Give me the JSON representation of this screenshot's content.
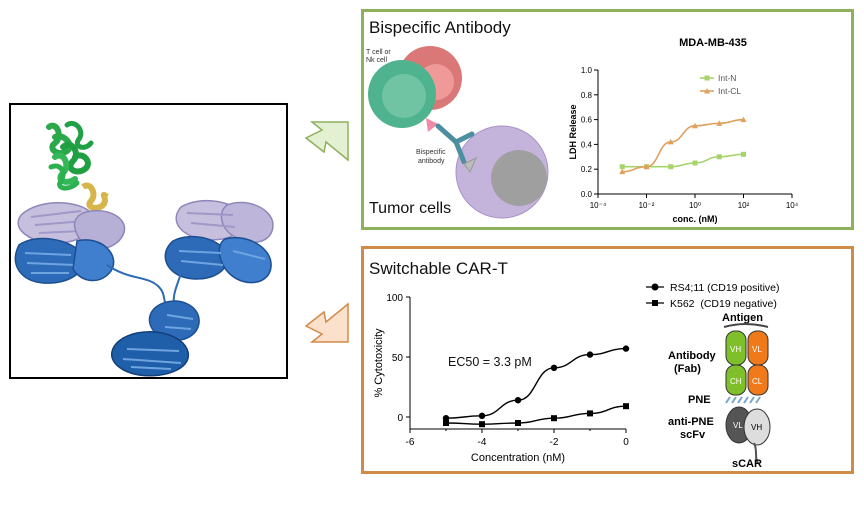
{
  "bispecific": {
    "title": "Bispecific Antibody",
    "cell_label": "T cell or Nk cell",
    "cell_label_line1": "T cell or",
    "cell_label_line2": "Nk cell",
    "antibody_label": "Bispecific antibody",
    "antibody_label_line1": "Bispecific",
    "antibody_label_line2": "antibody",
    "tumor_label": "Tumor cells"
  },
  "car_t": {
    "title": "Switchable CAR-T",
    "ec50": "EC50 = 3.3 pM",
    "legend": [
      "RS4;11 (CD19 positive)",
      "K562  (CD19 negative)"
    ],
    "schematic": {
      "antigen": "Antigen",
      "antibody_line1": "Antibody",
      "antibody_line2": "(Fab)",
      "pne": "PNE",
      "scfv_line1": "anti-PNE",
      "scfv_line2": "scFv",
      "scar": "sCAR",
      "domain_vh": "VH",
      "domain_vl": "VL",
      "domain_ch": "CH",
      "domain_cl": "CL"
    }
  },
  "colors": {
    "green_border": "#8db15c",
    "orange_border": "#d28a4a",
    "int_n": "#a6d46a",
    "int_cl": "#e0a05e"
  },
  "chart_data": [
    {
      "type": "line",
      "title": "MDA-MB-435",
      "xlabel": "conc. (nM)",
      "ylabel": "LDH Release",
      "x_scale": "log",
      "xlim": [
        0.0001,
        10000
      ],
      "ylim": [
        0.0,
        1.0
      ],
      "xticks": [
        "10⁻⁴",
        "10⁻²",
        "10⁰",
        "10²",
        "10⁴"
      ],
      "yticks": [
        "0.0",
        "0.2",
        "0.4",
        "0.6",
        "0.8",
        "1.0"
      ],
      "legend_position": "top-right",
      "series": [
        {
          "name": "Int-N",
          "color": "#a6d46a",
          "marker": "square",
          "x": [
            0.001,
            0.01,
            0.1,
            1,
            10,
            100
          ],
          "y": [
            0.22,
            0.22,
            0.22,
            0.25,
            0.3,
            0.32
          ]
        },
        {
          "name": "Int-CL",
          "color": "#e0a05e",
          "marker": "triangle",
          "x": [
            0.001,
            0.01,
            0.1,
            1,
            10,
            100
          ],
          "y": [
            0.18,
            0.22,
            0.42,
            0.55,
            0.57,
            0.6
          ]
        }
      ]
    },
    {
      "type": "line",
      "title": "",
      "xlabel": "Concentration (nM)",
      "ylabel": "% Cytotoxicity",
      "xlim": [
        -6,
        0
      ],
      "ylim": [
        -10,
        100
      ],
      "xticks": [
        "-6",
        "-4",
        "-2",
        "0"
      ],
      "yticks": [
        "0",
        "50",
        "100"
      ],
      "legend_position": "top-right",
      "series": [
        {
          "name": "RS4;11 (CD19 positive)",
          "marker": "circle",
          "color": "#000000",
          "x": [
            -5,
            -4,
            -3,
            -2,
            -1,
            0
          ],
          "y": [
            -1,
            1,
            14,
            41,
            52,
            57
          ]
        },
        {
          "name": "K562  (CD19 negative)",
          "marker": "square",
          "color": "#000000",
          "x": [
            -5,
            -4,
            -3,
            -2,
            -1,
            0
          ],
          "y": [
            -5,
            -6,
            -5,
            -1,
            3,
            9
          ]
        }
      ]
    }
  ]
}
